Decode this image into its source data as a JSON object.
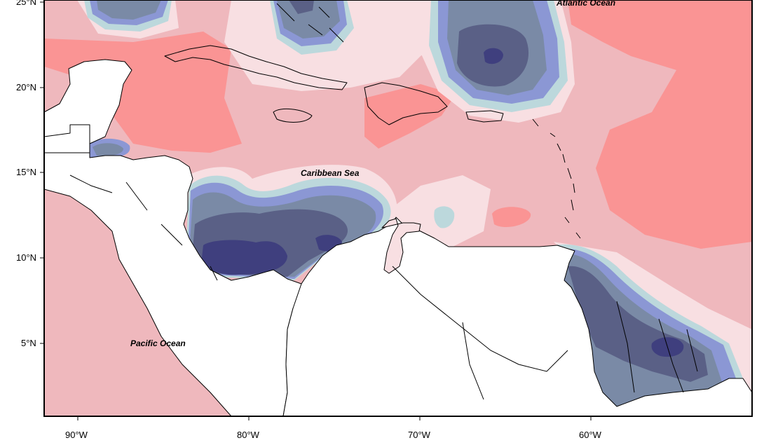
{
  "map": {
    "region": "Caribbean",
    "colors": {
      "background": "#ffffff",
      "land": "#ffffff",
      "coast": "#000000",
      "neg_strong": "#3f3f7e",
      "neg_mid": "#5a6086",
      "neg_mid2": "#7a8aa6",
      "neg_light": "#8b97d4",
      "neg_pale": "#bcd8dc",
      "neutral": "#f8dfe2",
      "pos_light": "#efb8bd",
      "pos_strong": "#fa9494"
    },
    "labels": {
      "atlantic": "Atlantic Ocean",
      "caribbean": "Caribbean Sea",
      "pacific": "Pacific Ocean"
    },
    "lat_ticks": [
      "25°N",
      "20°N",
      "15°N",
      "10°N",
      "5°N"
    ],
    "lon_ticks": [
      "90°W",
      "80°W",
      "70°W",
      "60°W"
    ]
  }
}
